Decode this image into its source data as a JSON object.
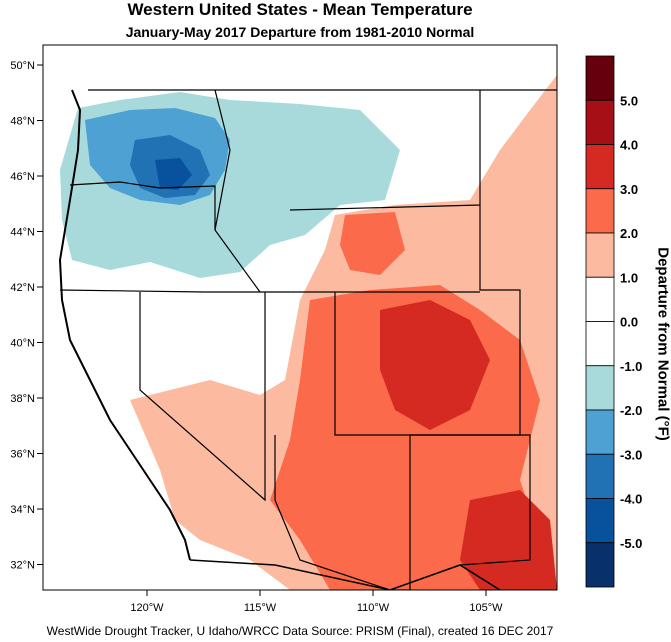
{
  "title": "Western United States - Mean Temperature",
  "subtitle": "January-May 2017  Departure from 1981-2010 Normal",
  "credit": "WestWide Drought Tracker, U Idaho/WRCC Data Source: PRISM (Final), created 16 DEC 2017",
  "lat_ticks": [
    "50°N",
    "48°N",
    "46°N",
    "44°N",
    "42°N",
    "40°N",
    "38°N",
    "36°N",
    "34°N",
    "32°N"
  ],
  "lon_ticks": [
    "120°W",
    "115°W",
    "110°W",
    "105°W"
  ],
  "legend": {
    "label": "Departure from Normal (°F)",
    "ticks": [
      "5.0",
      "4.0",
      "3.0",
      "2.0",
      "1.0",
      "0.0",
      "-1.0",
      "-2.0",
      "-3.0",
      "-4.0",
      "-5.0"
    ],
    "colors": [
      "#67000d",
      "#a50f15",
      "#d42a22",
      "#fb6a4a",
      "#fcbba1",
      "#ffffff",
      "#ffffff",
      "#a8dadc",
      "#4ea1d3",
      "#2171b5",
      "#08519c",
      "#08306b"
    ]
  }
}
